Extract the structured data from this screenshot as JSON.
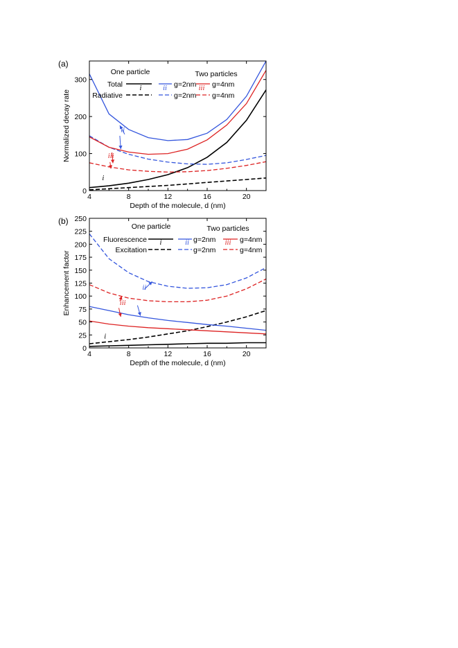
{
  "chart_data": [
    {
      "panel_label": "(a)",
      "type": "line",
      "xlabel": "Depth of the molecule, d (nm)",
      "ylabel": "Normalized decay rate",
      "xlim": [
        4,
        22
      ],
      "ylim": [
        0,
        350
      ],
      "xticks": [
        4,
        8,
        12,
        16,
        20
      ],
      "yticks": [
        0,
        100,
        200,
        300
      ],
      "legend": {
        "placement": "top",
        "heading_one": "One particle",
        "heading_two": "Two particles",
        "row1_label": "Total",
        "row2_label": "Radiative",
        "one_marker": "i",
        "two_marker_a": "ii",
        "two_marker_b": "iii",
        "gap_a": "g=2nm",
        "gap_b": "g=4nm"
      },
      "series": [
        {
          "name": "Total",
          "group": "One particle",
          "color": "#000000",
          "dash": "solid",
          "x": [
            4,
            6,
            8,
            10,
            12,
            14,
            16,
            18,
            20,
            22
          ],
          "y": [
            8,
            13,
            20,
            30,
            43,
            62,
            90,
            130,
            190,
            272
          ]
        },
        {
          "name": "Radiative",
          "group": "One particle",
          "color": "#000000",
          "dash": "dashed",
          "x": [
            4,
            6,
            8,
            10,
            12,
            14,
            16,
            18,
            20,
            22
          ],
          "y": [
            2,
            5,
            8,
            11,
            14,
            18,
            22,
            26,
            30,
            34
          ]
        },
        {
          "name": "Total",
          "group": "g=2nm",
          "color": "#3355dd",
          "dash": "solid",
          "x": [
            4,
            6,
            8,
            10,
            12,
            14,
            16,
            18,
            20,
            22
          ],
          "y": [
            315,
            207,
            165,
            143,
            135,
            138,
            155,
            192,
            255,
            350
          ]
        },
        {
          "name": "Radiative",
          "group": "g=2nm",
          "color": "#3355dd",
          "dash": "dashed",
          "x": [
            4,
            6,
            8,
            10,
            12,
            14,
            16,
            18,
            20,
            22
          ],
          "y": [
            148,
            117,
            98,
            85,
            77,
            72,
            71,
            75,
            84,
            95
          ]
        },
        {
          "name": "Total",
          "group": "g=4nm",
          "color": "#dd2222",
          "dash": "solid",
          "x": [
            4,
            6,
            8,
            10,
            12,
            14,
            16,
            18,
            20,
            22
          ],
          "y": [
            145,
            117,
            104,
            98,
            100,
            112,
            137,
            177,
            235,
            325
          ]
        },
        {
          "name": "Radiative",
          "group": "g=4nm",
          "color": "#dd2222",
          "dash": "dashed",
          "x": [
            4,
            6,
            8,
            10,
            12,
            14,
            16,
            18,
            20,
            22
          ],
          "y": [
            75,
            64,
            56,
            52,
            50,
            51,
            54,
            60,
            68,
            78
          ]
        }
      ],
      "annotations": [
        {
          "text": "ii",
          "color": "#3355dd",
          "x": 7.4,
          "y": 158
        },
        {
          "text": "iii",
          "color": "#dd2222",
          "x": 6.2,
          "y": 88
        },
        {
          "text": "i",
          "color": "#000000",
          "x": 5.4,
          "y": 28
        }
      ]
    },
    {
      "panel_label": "(b)",
      "type": "line",
      "xlabel": "Depth of the molecule, d (nm)",
      "ylabel": "Enhancement factor",
      "xlim": [
        4,
        22
      ],
      "ylim": [
        0,
        250
      ],
      "xticks": [
        4,
        8,
        12,
        16,
        20
      ],
      "yticks": [
        0,
        25,
        50,
        75,
        100,
        125,
        150,
        175,
        200,
        225,
        250
      ],
      "legend": {
        "placement": "top",
        "heading_one": "One particle",
        "heading_two": "Two particles",
        "row1_label": "Fluorescence",
        "row2_label": "Excitation",
        "one_marker": "i",
        "two_marker_a": "ii",
        "two_marker_b": "iii",
        "gap_a": "g=2nm",
        "gap_b": "g=4nm"
      },
      "series": [
        {
          "name": "Fluorescence",
          "group": "One particle",
          "color": "#000000",
          "dash": "solid",
          "x": [
            4,
            6,
            8,
            10,
            12,
            14,
            16,
            18,
            20,
            22
          ],
          "y": [
            3,
            4,
            5,
            6,
            7,
            8,
            9,
            9,
            10,
            10
          ]
        },
        {
          "name": "Excitation",
          "group": "One particle",
          "color": "#000000",
          "dash": "dashed",
          "x": [
            4,
            6,
            8,
            10,
            12,
            14,
            16,
            18,
            20,
            22
          ],
          "y": [
            8,
            12,
            16,
            21,
            27,
            33,
            41,
            50,
            60,
            72
          ]
        },
        {
          "name": "Fluorescence",
          "group": "g=2nm",
          "color": "#3355dd",
          "dash": "solid",
          "x": [
            4,
            6,
            8,
            10,
            12,
            14,
            16,
            18,
            20,
            22
          ],
          "y": [
            80,
            72,
            64,
            58,
            53,
            49,
            45,
            42,
            38,
            34
          ]
        },
        {
          "name": "Excitation",
          "group": "g=2nm",
          "color": "#3355dd",
          "dash": "dashed",
          "x": [
            4,
            6,
            8,
            10,
            12,
            14,
            16,
            18,
            20,
            22
          ],
          "y": [
            220,
            172,
            145,
            128,
            119,
            115,
            116,
            122,
            135,
            155
          ]
        },
        {
          "name": "Fluorescence",
          "group": "g=4nm",
          "color": "#dd2222",
          "dash": "solid",
          "x": [
            4,
            6,
            8,
            10,
            12,
            14,
            16,
            18,
            20,
            22
          ],
          "y": [
            52,
            46,
            42,
            39,
            37,
            35,
            33,
            31,
            29,
            27
          ]
        },
        {
          "name": "Excitation",
          "group": "g=4nm",
          "color": "#dd2222",
          "dash": "dashed",
          "x": [
            4,
            6,
            8,
            10,
            12,
            14,
            16,
            18,
            20,
            22
          ],
          "y": [
            122,
            106,
            96,
            91,
            89,
            89,
            92,
            100,
            114,
            133
          ]
        }
      ],
      "annotations": [
        {
          "text": "ii",
          "color": "#3355dd",
          "x": 9.6,
          "y": 112
        },
        {
          "text": "iii",
          "color": "#dd2222",
          "x": 7.4,
          "y": 83
        },
        {
          "text": "i",
          "color": "#000000",
          "x": 5.6,
          "y": 18
        }
      ]
    }
  ]
}
